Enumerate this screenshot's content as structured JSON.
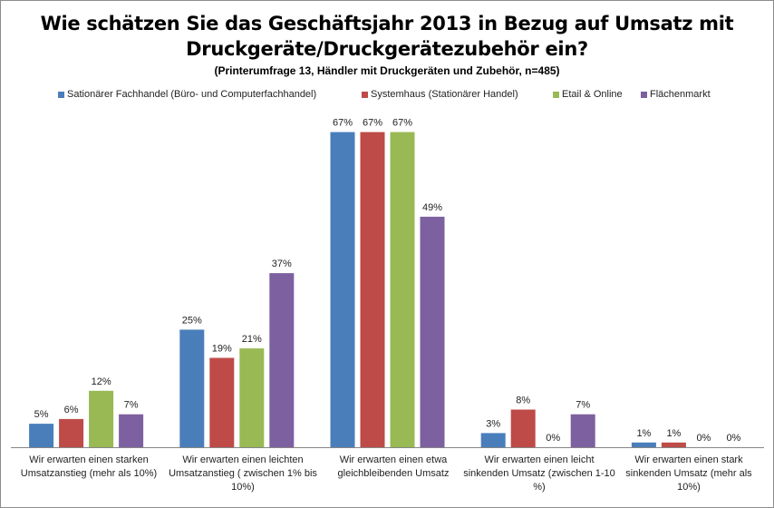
{
  "chart_data": {
    "type": "bar",
    "title": "Wie schätzen Sie das Geschäftsjahr 2013 in Bezug auf Umsatz mit",
    "title_line2": "Druckgeräte/Druckgerätezubehör ein?",
    "subtitle": "(Printerumfrage 13, Händler mit Druckgeräten und Zubehör, n=485)",
    "categories": [
      "Wir erwarten einen starken Umsatzanstieg (mehr als 10%)",
      "Wir erwarten einen leichten Umsatzanstieg ( zwischen 1% bis 10%)",
      "Wir erwarten einen etwa gleichbleibenden Umsatz",
      "Wir erwarten einen leicht sinkenden Umsatz (zwischen 1-10 %)",
      "Wir erwarten einen stark sinkenden Umsatz (mehr als 10%)"
    ],
    "series": [
      {
        "name": "Sationärer Fachhandel (Büro- und Computerfachhandel)",
        "color": "#4a7ebb",
        "values": [
          5,
          25,
          67,
          3,
          1
        ]
      },
      {
        "name": "Systemhaus (Stationärer Handel)",
        "color": "#be4b48",
        "values": [
          6,
          19,
          67,
          8,
          1
        ]
      },
      {
        "name": "Etail & Online",
        "color": "#98b954",
        "values": [
          12,
          21,
          67,
          0,
          0
        ]
      },
      {
        "name": "Flächenmarkt",
        "color": "#7d60a0",
        "values": [
          7,
          37,
          49,
          7,
          0
        ]
      }
    ],
    "value_suffix": "%",
    "ylim": [
      0,
      70
    ],
    "grid": false,
    "legend_position": "top"
  }
}
